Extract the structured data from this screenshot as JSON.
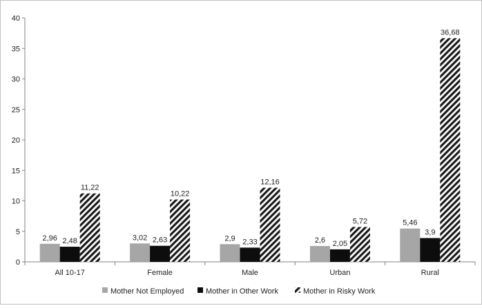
{
  "chart_data": {
    "type": "bar",
    "title": "",
    "xlabel": "",
    "ylabel": "",
    "categories": [
      "All 10-17",
      "Female",
      "Male",
      "Urban",
      "Rural"
    ],
    "series": [
      {
        "name": "Mother Not Employed",
        "values": [
          2.96,
          3.02,
          2.9,
          2.6,
          5.46
        ],
        "labels": [
          "2,96",
          "3,02",
          "2,9",
          "2,6",
          "5,46"
        ],
        "color": "#a6a6a6",
        "pattern": "solid"
      },
      {
        "name": "Mother in Other Work",
        "values": [
          2.48,
          2.63,
          2.33,
          2.05,
          3.9
        ],
        "labels": [
          "2,48",
          "2,63",
          "2,33",
          "2,05",
          "3,9"
        ],
        "color": "#0d0d0d",
        "pattern": "solid"
      },
      {
        "name": "Mother in Risky Work",
        "values": [
          11.22,
          10.22,
          12.16,
          5.72,
          36.68
        ],
        "labels": [
          "11,22",
          "10,22",
          "12,16",
          "5,72",
          "36,68"
        ],
        "color": "#1a1a1a",
        "pattern": "diagonal-stripes"
      }
    ],
    "ylim": [
      0,
      40
    ],
    "yticks": [
      0,
      5,
      10,
      15,
      20,
      25,
      30,
      35,
      40
    ],
    "grid": false,
    "legend_position": "bottom"
  }
}
